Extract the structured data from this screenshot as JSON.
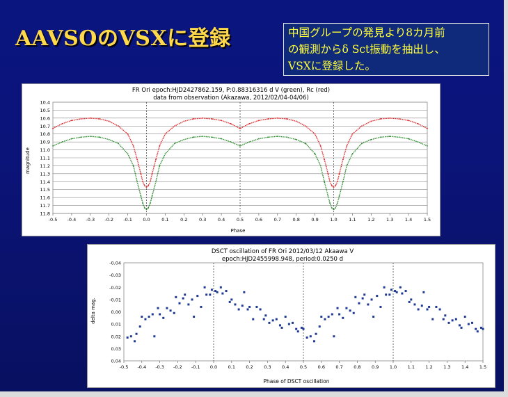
{
  "slide": {
    "title": "AAVSOのVSXに登録",
    "note": [
      "中国グループの発見より8カ月前",
      "の観測からδ Sct振動を抽出し、",
      "VSXに登録した。"
    ]
  },
  "chart_data": [
    {
      "type": "scatter",
      "title": "FR Ori epoch:HJD2427862.159, P:0.88316316 d V (green), Rc (red)",
      "subtitle": "data from observation (Akazawa, 2012/02/04-04/06)",
      "xlabel": "Phase",
      "ylabel": "magnitude",
      "xlim": [
        -0.5,
        1.5
      ],
      "ylim": [
        11.8,
        10.4
      ],
      "y_inverted": true,
      "yticks": [
        "10.4",
        "10.5",
        "10.6",
        "10.7",
        "10.8",
        "10.9",
        "11.0",
        "11.1",
        "11.2",
        "11.3",
        "11.4",
        "11.5",
        "11.6",
        "11.7",
        "11.8"
      ],
      "xticks": [
        "-0.5",
        "-0.4",
        "-0.3",
        "-0.2",
        "-0.1",
        "0.0",
        "0.1",
        "0.2",
        "0.3",
        "0.4",
        "0.5",
        "0.6",
        "0.7",
        "0.8",
        "0.9",
        "1.0",
        "1.1",
        "1.2",
        "1.3",
        "1.4",
        "1.5"
      ],
      "grid": true,
      "series": [
        {
          "name": "V (green)",
          "color": "#2e8b2e",
          "x": [
            -0.5,
            -0.45,
            -0.4,
            -0.35,
            -0.3,
            -0.25,
            -0.2,
            -0.15,
            -0.1,
            -0.07,
            -0.05,
            -0.03,
            -0.02,
            -0.01,
            0.0,
            0.01,
            0.02,
            0.03,
            0.05,
            0.07,
            0.1,
            0.15,
            0.2,
            0.25,
            0.3,
            0.35,
            0.4,
            0.45,
            0.5,
            0.55,
            0.6,
            0.65,
            0.7,
            0.75,
            0.8,
            0.85,
            0.9,
            0.93,
            0.95,
            0.97,
            0.98,
            0.99,
            1.0,
            1.01,
            1.02,
            1.03,
            1.05,
            1.07,
            1.1,
            1.15,
            1.2,
            1.25,
            1.3,
            1.35,
            1.4,
            1.45,
            1.5
          ],
          "y": [
            10.95,
            10.9,
            10.86,
            10.84,
            10.83,
            10.84,
            10.87,
            10.92,
            11.05,
            11.2,
            11.4,
            11.58,
            11.67,
            11.73,
            11.75,
            11.73,
            11.67,
            11.58,
            11.4,
            11.2,
            11.05,
            10.92,
            10.87,
            10.84,
            10.83,
            10.84,
            10.86,
            10.9,
            10.95,
            10.9,
            10.86,
            10.84,
            10.83,
            10.84,
            10.87,
            10.92,
            11.05,
            11.2,
            11.4,
            11.58,
            11.67,
            11.73,
            11.75,
            11.73,
            11.67,
            11.58,
            11.4,
            11.2,
            11.05,
            10.92,
            10.87,
            10.84,
            10.83,
            10.84,
            10.86,
            10.9,
            10.95
          ]
        },
        {
          "name": "Rc (red)",
          "color": "#e0262a",
          "x": [
            -0.5,
            -0.45,
            -0.4,
            -0.35,
            -0.3,
            -0.25,
            -0.2,
            -0.15,
            -0.1,
            -0.07,
            -0.05,
            -0.03,
            -0.02,
            -0.01,
            0.0,
            0.01,
            0.02,
            0.03,
            0.05,
            0.07,
            0.1,
            0.15,
            0.2,
            0.25,
            0.3,
            0.35,
            0.4,
            0.45,
            0.5,
            0.55,
            0.6,
            0.65,
            0.7,
            0.75,
            0.8,
            0.85,
            0.9,
            0.93,
            0.95,
            0.97,
            0.98,
            0.99,
            1.0,
            1.01,
            1.02,
            1.03,
            1.05,
            1.07,
            1.1,
            1.15,
            1.2,
            1.25,
            1.3,
            1.35,
            1.4,
            1.45,
            1.5
          ],
          "y": [
            10.73,
            10.67,
            10.63,
            10.61,
            10.6,
            10.61,
            10.64,
            10.7,
            10.8,
            10.95,
            11.12,
            11.3,
            11.4,
            11.45,
            11.47,
            11.45,
            11.4,
            11.3,
            11.12,
            10.95,
            10.8,
            10.7,
            10.64,
            10.61,
            10.6,
            10.61,
            10.63,
            10.67,
            10.73,
            10.67,
            10.63,
            10.61,
            10.6,
            10.61,
            10.64,
            10.7,
            10.8,
            10.95,
            11.12,
            11.3,
            11.4,
            11.45,
            11.47,
            11.45,
            11.4,
            11.3,
            11.12,
            10.95,
            10.8,
            10.7,
            10.64,
            10.61,
            10.6,
            10.61,
            10.63,
            10.67,
            10.73
          ]
        }
      ]
    },
    {
      "type": "scatter",
      "title": "DSCT oscillation of FR Ori 2012/03/12 Akaawa V",
      "subtitle": "epoch:HJD2455998.948, period:0.0250 d",
      "xlabel": "Phase of DSCT oscillation",
      "ylabel": "delta mag.",
      "xlim": [
        -0.5,
        1.5
      ],
      "ylim": [
        0.04,
        -0.04
      ],
      "y_inverted": true,
      "yticks": [
        "-0.04",
        "-0.03",
        "-0.02",
        "-0.01",
        "0.00",
        "0.01",
        "0.02",
        "0.03",
        "0.04"
      ],
      "xticks": [
        "-0.5",
        "-0.4",
        "-0.3",
        "-0.2",
        "-0.1",
        "0.0",
        "0.1",
        "0.2",
        "0.3",
        "0.4",
        "0.5",
        "0.6",
        "0.7",
        "0.8",
        "0.9",
        "1.0",
        "1.1",
        "1.2",
        "1.3",
        "1.4",
        "1.5"
      ],
      "grid": false,
      "series": [
        {
          "name": "V",
          "color": "#1f3a93",
          "x": [
            -0.48,
            -0.46,
            -0.44,
            -0.43,
            -0.41,
            -0.4,
            -0.38,
            -0.36,
            -0.34,
            -0.33,
            -0.31,
            -0.3,
            -0.28,
            -0.26,
            -0.24,
            -0.22,
            -0.21,
            -0.19,
            -0.17,
            -0.16,
            -0.14,
            -0.12,
            -0.11,
            -0.09,
            -0.07,
            -0.05,
            -0.04,
            -0.02,
            -0.01,
            0.01,
            0.02,
            0.04,
            0.05,
            0.07,
            0.09,
            0.1,
            0.12,
            0.14,
            0.16,
            0.17,
            0.19,
            0.2,
            0.22,
            0.24,
            0.26,
            0.28,
            0.29,
            0.31,
            0.33,
            0.35,
            0.37,
            0.38,
            0.4,
            0.42,
            0.44,
            0.46,
            0.47,
            0.49,
            0.5
          ],
          "y": [
            0.021,
            0.02,
            0.024,
            0.018,
            0.012,
            0.004,
            0.006,
            0.004,
            0.002,
            0.02,
            -0.003,
            0.002,
            0.005,
            -0.003,
            -0.001,
            0.001,
            -0.012,
            -0.007,
            -0.011,
            -0.014,
            -0.006,
            -0.01,
            0.004,
            -0.013,
            -0.004,
            -0.02,
            -0.014,
            -0.014,
            -0.018,
            -0.017,
            -0.016,
            -0.02,
            -0.015,
            -0.017,
            -0.008,
            -0.01,
            -0.006,
            -0.002,
            -0.005,
            -0.016,
            -0.002,
            -0.004,
            0.006,
            -0.004,
            -0.002,
            0.006,
            0.003,
            0.009,
            0.007,
            0.006,
            0.011,
            0.013,
            0.004,
            0.01,
            0.009,
            0.014,
            0.016,
            0.013,
            0.014
          ]
        }
      ]
    }
  ]
}
